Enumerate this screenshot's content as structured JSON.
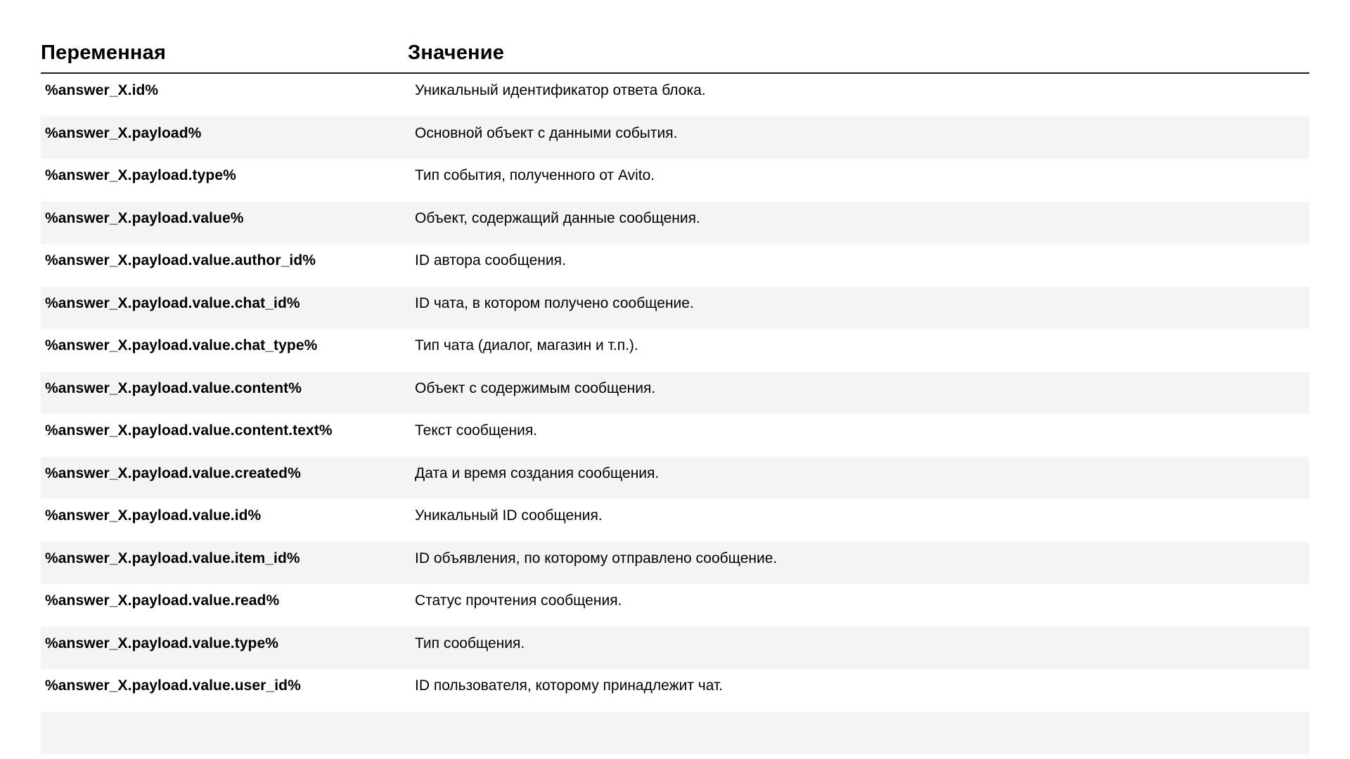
{
  "table": {
    "headers": {
      "variable": "Переменная",
      "value": "Значение"
    },
    "rows": [
      {
        "variable": "%answer_X.id%",
        "value": "Уникальный идентификатор ответа блока."
      },
      {
        "variable": "%answer_X.payload%",
        "value": "Основной объект с данными события."
      },
      {
        "variable": "%answer_X.payload.type%",
        "value": "Тип события, полученного от Avito."
      },
      {
        "variable": "%answer_X.payload.value%",
        "value": "Объект, содержащий данные сообщения."
      },
      {
        "variable": "%answer_X.payload.value.author_id%",
        "value": "ID автора сообщения."
      },
      {
        "variable": "%answer_X.payload.value.chat_id%",
        "value": "ID чата, в котором получено сообщение."
      },
      {
        "variable": "%answer_X.payload.value.chat_type%",
        "value": "Тип чата (диалог, магазин и т.п.)."
      },
      {
        "variable": "%answer_X.payload.value.content%",
        "value": "Объект с содержимым сообщения."
      },
      {
        "variable": "%answer_X.payload.value.content.text%",
        "value": "Текст сообщения."
      },
      {
        "variable": "%answer_X.payload.value.created%",
        "value": "Дата и время создания сообщения."
      },
      {
        "variable": "%answer_X.payload.value.id%",
        "value": "Уникальный ID сообщения."
      },
      {
        "variable": "%answer_X.payload.value.item_id%",
        "value": "ID объявления, по которому отправлено сообщение."
      },
      {
        "variable": "%answer_X.payload.value.read%",
        "value": "Статус прочтения сообщения."
      },
      {
        "variable": "%answer_X.payload.value.type%",
        "value": "Тип сообщения."
      },
      {
        "variable": "%answer_X.payload.value.user_id%",
        "value": "ID пользователя, которому принадлежит чат."
      }
    ],
    "colors": {
      "stripe": "#f4f4f4",
      "header_rule": "#1c1c1c",
      "text": "#000000",
      "background": "#ffffff"
    }
  }
}
